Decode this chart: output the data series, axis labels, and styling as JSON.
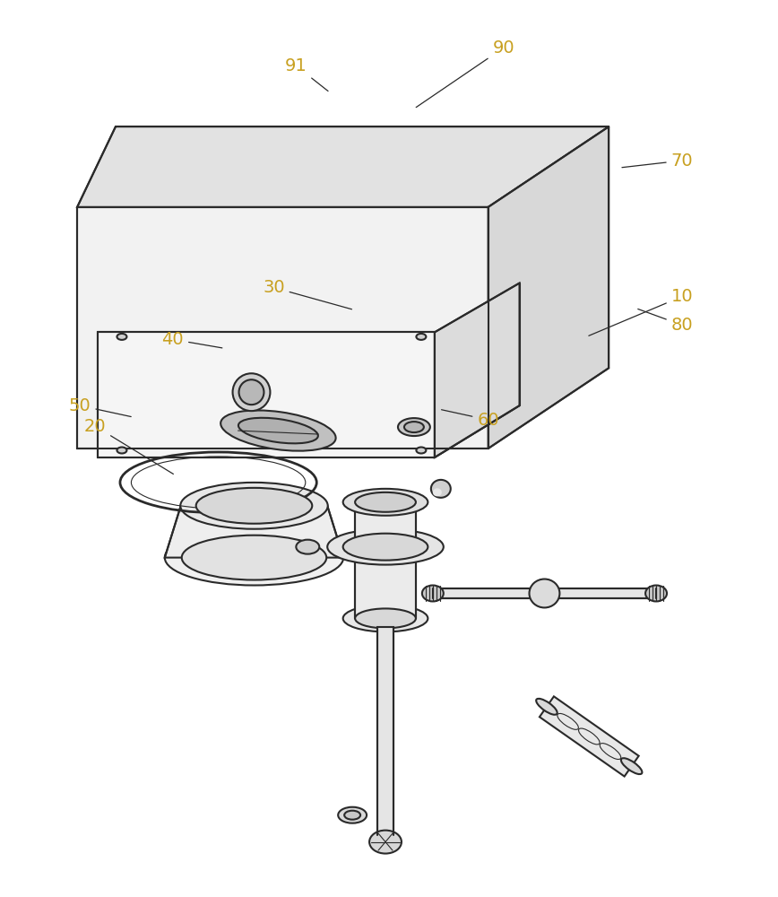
{
  "bg_color": "#ffffff",
  "line_color": "#2a2a2a",
  "line_width": 1.5,
  "thin_line": 0.8,
  "label_color": "#c8a020",
  "label_fontsize": 14,
  "annotations": [
    [
      "10",
      762,
      330,
      655,
      375
    ],
    [
      "20",
      105,
      475,
      195,
      530
    ],
    [
      "30",
      305,
      320,
      395,
      345
    ],
    [
      "40",
      192,
      378,
      250,
      388
    ],
    [
      "50",
      88,
      452,
      148,
      465
    ],
    [
      "60",
      545,
      468,
      490,
      456
    ],
    [
      "70",
      762,
      178,
      692,
      186
    ],
    [
      "80",
      762,
      362,
      710,
      343
    ],
    [
      "90",
      562,
      52,
      462,
      120
    ],
    [
      "91",
      330,
      72,
      368,
      102
    ]
  ]
}
